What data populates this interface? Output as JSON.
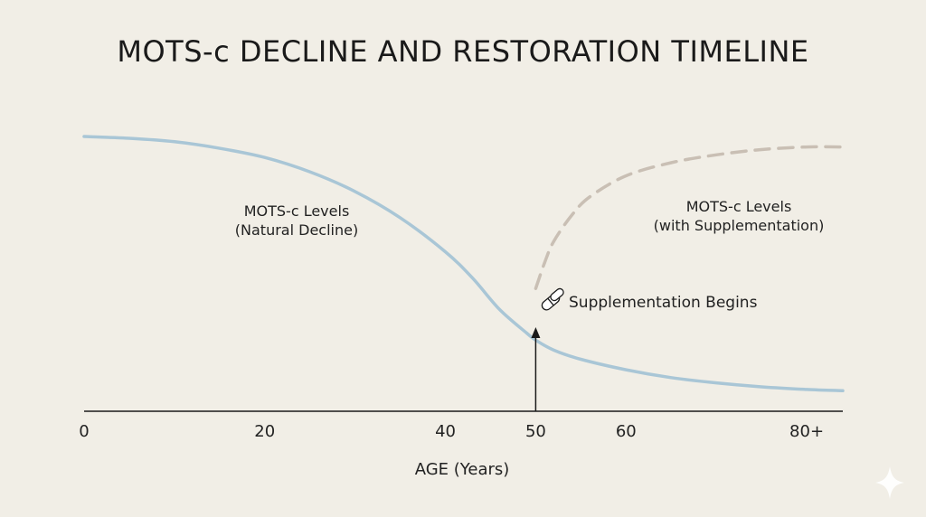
{
  "page": {
    "title": "MOTS-c DECLINE AND RESTORATION TIMELINE"
  },
  "chart_data": {
    "type": "line",
    "title": "MOTS-c DECLINE AND RESTORATION TIMELINE",
    "xlabel": "AGE (Years)",
    "ylabel": "",
    "xlim": [
      0,
      84
    ],
    "ylim": [
      0,
      1
    ],
    "grid": false,
    "x_ticks": [
      {
        "value": 0,
        "label": "0"
      },
      {
        "value": 20,
        "label": "20"
      },
      {
        "value": 40,
        "label": "40"
      },
      {
        "value": 50,
        "label": "50"
      },
      {
        "value": 60,
        "label": "60"
      },
      {
        "value": 80,
        "label": "80+"
      }
    ],
    "series": [
      {
        "name": "MOTS-c Levels\n(Natural Decline)",
        "label_lines": [
          "MOTS-c Levels",
          "(Natural Decline)"
        ],
        "style": "solid",
        "color": "#a9c6d6",
        "x": [
          0,
          5,
          10,
          15,
          20,
          25,
          30,
          35,
          40,
          43,
          46,
          49,
          50,
          52,
          55,
          60,
          65,
          70,
          75,
          80,
          84
        ],
        "y": [
          1.0,
          0.993,
          0.98,
          0.955,
          0.92,
          0.865,
          0.79,
          0.69,
          0.56,
          0.46,
          0.34,
          0.25,
          0.223,
          0.185,
          0.15,
          0.11,
          0.08,
          0.06,
          0.045,
          0.035,
          0.03
        ]
      },
      {
        "name": "MOTS-c Levels\n(with Supplementation)",
        "label_lines": [
          "MOTS-c Levels",
          "(with Supplementation)"
        ],
        "style": "dashed",
        "color": "#c9bfb4",
        "x": [
          50,
          51,
          52,
          54,
          56,
          60,
          65,
          70,
          75,
          80,
          84
        ],
        "y": [
          0.42,
          0.52,
          0.6,
          0.7,
          0.77,
          0.85,
          0.9,
          0.93,
          0.95,
          0.96,
          0.96
        ]
      }
    ],
    "annotations": [
      {
        "x": 50,
        "text": "Supplementation Begins",
        "icon": "pill-icon"
      }
    ]
  }
}
